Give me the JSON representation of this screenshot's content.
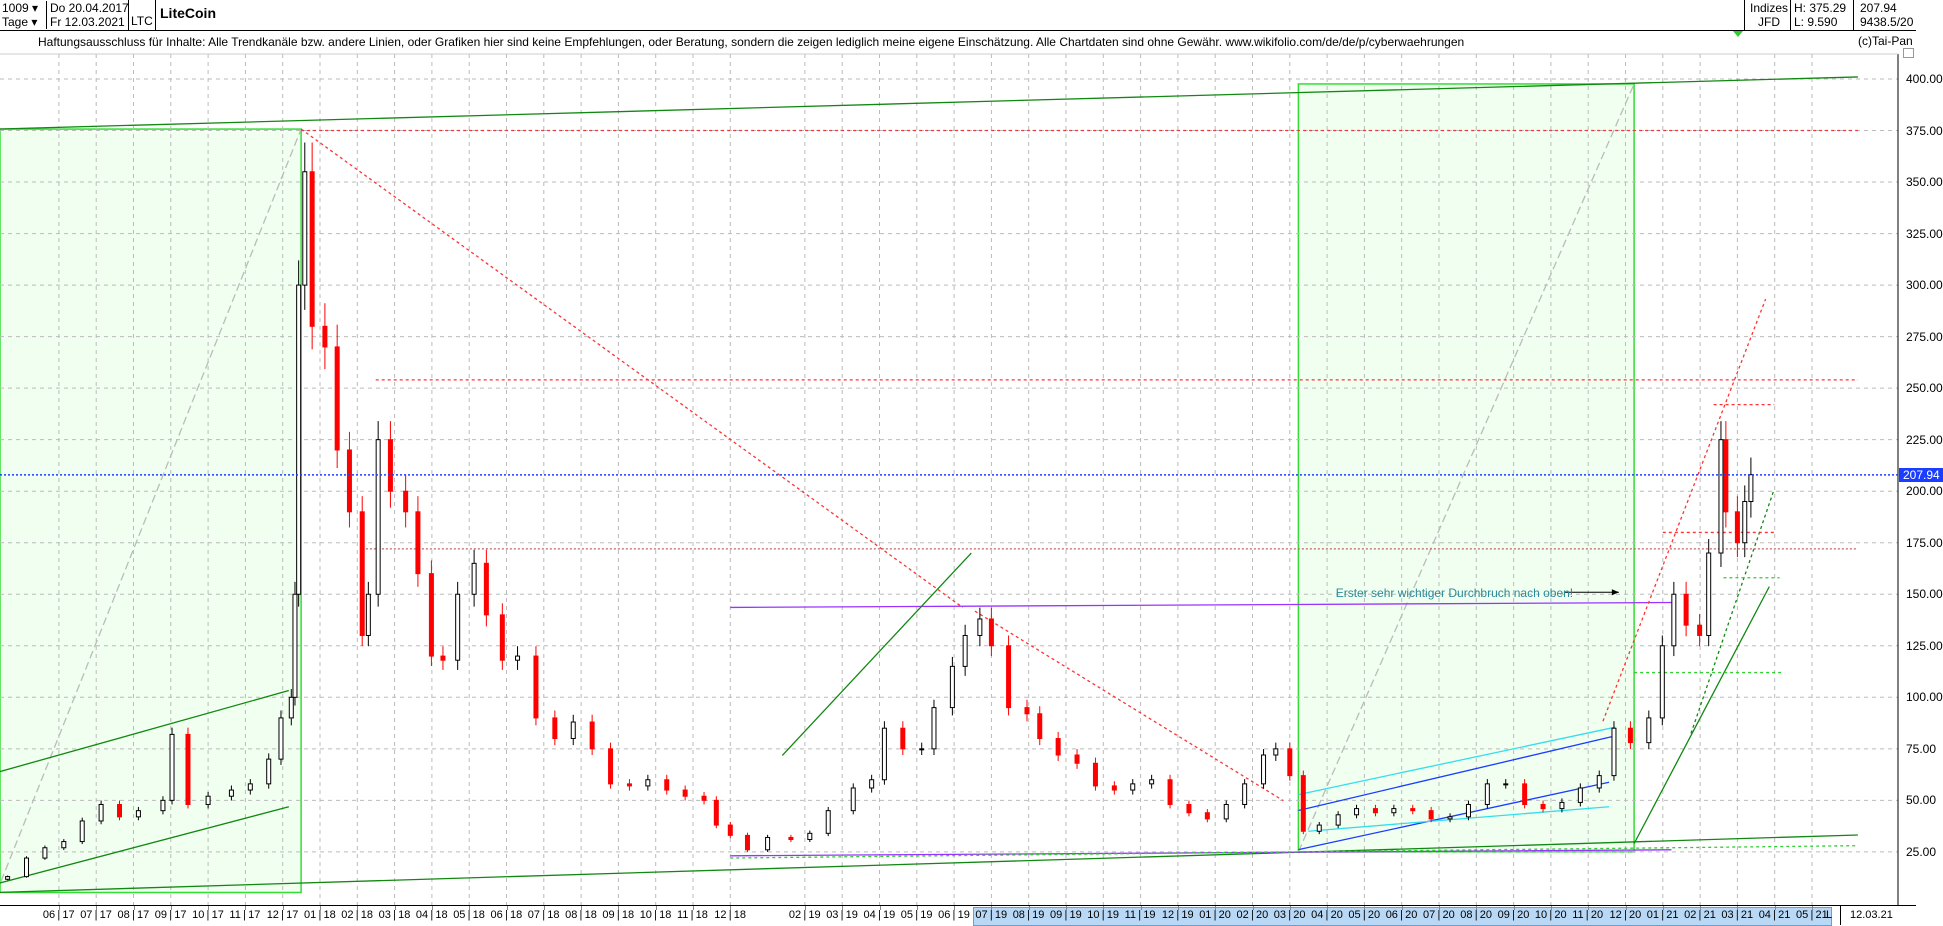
{
  "header": {
    "count": "1009",
    "period": "Tage",
    "start_date": "Do 20.04.2017",
    "end_date": "Fr 12.03.2021",
    "symbol": "LTC",
    "title": "LiteCoin",
    "market": "Indizes",
    "source": "JFD",
    "high": "H: 375.29",
    "low": "L: 9.590",
    "last": "207.94",
    "extra": "9438.5/20",
    "copyright": "(c)Tai-Pan"
  },
  "disclaimer": "Haftungsausschluss für Inhalte: Alle Trendkanäle bzw. andere Linien, oder Grafiken hier sind keine Empfehlungen, oder Beratung, sondern die zeigen lediglich meine eigene Einschätzung. Alle Chartdaten sind ohne Gewähr.  www.wikifolio.com/de/de/p/cyberwaehrungen",
  "xaxis": {
    "end_label": "12.03.21",
    "scale_label": "L"
  },
  "colors": {
    "up": "#000000",
    "down": "#ff0000",
    "last_price": "#1a3dff",
    "grid": "#bbbbbb"
  },
  "chart_data": {
    "type": "candlestick",
    "title": "LiteCoin",
    "ylim": [
      0,
      410
    ],
    "yticks": [
      "25.00",
      "50.00",
      "75.00",
      "100.00",
      "125.00",
      "150.00",
      "175.00",
      "200.00",
      "225.00",
      "250.00",
      "275.00",
      "300.00",
      "325.00",
      "350.00",
      "375.00",
      "400.00"
    ],
    "xticks": [
      "06 17",
      "07 17",
      "08 17",
      "09 17",
      "10 17",
      "11 17",
      "12 17",
      "01 18",
      "02 18",
      "03 18",
      "04 18",
      "05 18",
      "06 18",
      "07 18",
      "08 18",
      "09 18",
      "10 18",
      "11 18",
      "12 18",
      "02 19",
      "03 19",
      "04 19",
      "05 19",
      "06 19",
      "07 19",
      "08 19",
      "09 19",
      "10 19",
      "11 19",
      "12 19",
      "01 20",
      "02 20",
      "03 20",
      "04 20",
      "05 20",
      "06 20",
      "07 20",
      "08 20",
      "09 20",
      "10 20",
      "11 20",
      "12 20",
      "01 21",
      "02 21",
      "03 21",
      "04 21",
      "05 21"
    ],
    "grid": true,
    "last_price": 207.94,
    "last_price_label": "207.94",
    "closes": [
      [
        "2017-04-20",
        13
      ],
      [
        "2017-05-05",
        22
      ],
      [
        "2017-05-20",
        27
      ],
      [
        "2017-06-05",
        30
      ],
      [
        "2017-06-20",
        40
      ],
      [
        "2017-07-05",
        48
      ],
      [
        "2017-07-20",
        42
      ],
      [
        "2017-08-05",
        45
      ],
      [
        "2017-08-25",
        50
      ],
      [
        "2017-09-02",
        82
      ],
      [
        "2017-09-15",
        48
      ],
      [
        "2017-10-01",
        52
      ],
      [
        "2017-10-20",
        55
      ],
      [
        "2017-11-05",
        58
      ],
      [
        "2017-11-20",
        70
      ],
      [
        "2017-11-30",
        90
      ],
      [
        "2017-12-08",
        100
      ],
      [
        "2017-12-11",
        150
      ],
      [
        "2017-12-14",
        300
      ],
      [
        "2017-12-19",
        355
      ],
      [
        "2017-12-25",
        280
      ],
      [
        "2018-01-05",
        270
      ],
      [
        "2018-01-15",
        220
      ],
      [
        "2018-01-25",
        190
      ],
      [
        "2018-02-05",
        130
      ],
      [
        "2018-02-10",
        150
      ],
      [
        "2018-02-18",
        225
      ],
      [
        "2018-02-28",
        200
      ],
      [
        "2018-03-10",
        190
      ],
      [
        "2018-03-20",
        160
      ],
      [
        "2018-03-31",
        120
      ],
      [
        "2018-04-10",
        118
      ],
      [
        "2018-04-22",
        150
      ],
      [
        "2018-05-05",
        165
      ],
      [
        "2018-05-15",
        140
      ],
      [
        "2018-05-28",
        118
      ],
      [
        "2018-06-10",
        120
      ],
      [
        "2018-06-25",
        90
      ],
      [
        "2018-07-10",
        80
      ],
      [
        "2018-07-25",
        88
      ],
      [
        "2018-08-10",
        75
      ],
      [
        "2018-08-25",
        58
      ],
      [
        "2018-09-10",
        57
      ],
      [
        "2018-09-25",
        60
      ],
      [
        "2018-10-10",
        55
      ],
      [
        "2018-10-25",
        52
      ],
      [
        "2018-11-10",
        50
      ],
      [
        "2018-11-20",
        38
      ],
      [
        "2018-12-01",
        33
      ],
      [
        "2018-12-15",
        26
      ],
      [
        "2019-01-01",
        32
      ],
      [
        "2019-01-20",
        31
      ],
      [
        "2019-02-05",
        34
      ],
      [
        "2019-02-20",
        45
      ],
      [
        "2019-03-10",
        56
      ],
      [
        "2019-03-25",
        60
      ],
      [
        "2019-04-05",
        85
      ],
      [
        "2019-04-20",
        75
      ],
      [
        "2019-05-05",
        75
      ],
      [
        "2019-05-15",
        95
      ],
      [
        "2019-05-30",
        115
      ],
      [
        "2019-06-10",
        130
      ],
      [
        "2019-06-22",
        138
      ],
      [
        "2019-07-01",
        125
      ],
      [
        "2019-07-15",
        95
      ],
      [
        "2019-07-30",
        92
      ],
      [
        "2019-08-10",
        80
      ],
      [
        "2019-08-25",
        72
      ],
      [
        "2019-09-10",
        68
      ],
      [
        "2019-09-25",
        57
      ],
      [
        "2019-10-10",
        55
      ],
      [
        "2019-10-25",
        58
      ],
      [
        "2019-11-10",
        60
      ],
      [
        "2019-11-25",
        48
      ],
      [
        "2019-12-10",
        44
      ],
      [
        "2019-12-25",
        41
      ],
      [
        "2020-01-10",
        48
      ],
      [
        "2020-01-25",
        58
      ],
      [
        "2020-02-10",
        72
      ],
      [
        "2020-02-20",
        75
      ],
      [
        "2020-03-01",
        62
      ],
      [
        "2020-03-12",
        35
      ],
      [
        "2020-03-25",
        38
      ],
      [
        "2020-04-10",
        43
      ],
      [
        "2020-04-25",
        46
      ],
      [
        "2020-05-10",
        44
      ],
      [
        "2020-05-25",
        46
      ],
      [
        "2020-06-10",
        45
      ],
      [
        "2020-06-25",
        41
      ],
      [
        "2020-07-10",
        42
      ],
      [
        "2020-07-25",
        48
      ],
      [
        "2020-08-10",
        58
      ],
      [
        "2020-08-25",
        58
      ],
      [
        "2020-09-10",
        48
      ],
      [
        "2020-09-25",
        46
      ],
      [
        "2020-10-10",
        49
      ],
      [
        "2020-10-25",
        56
      ],
      [
        "2020-11-10",
        62
      ],
      [
        "2020-11-22",
        85
      ],
      [
        "2020-12-05",
        78
      ],
      [
        "2020-12-20",
        90
      ],
      [
        "2020-12-31",
        125
      ],
      [
        "2021-01-10",
        150
      ],
      [
        "2021-01-20",
        135
      ],
      [
        "2021-01-31",
        130
      ],
      [
        "2021-02-08",
        170
      ],
      [
        "2021-02-18",
        225
      ],
      [
        "2021-02-22",
        190
      ],
      [
        "2021-03-01",
        175
      ],
      [
        "2021-03-07",
        195
      ],
      [
        "2021-03-12",
        208
      ]
    ],
    "boxes": [
      {
        "from": [
          "2017-04-11",
          375.7
        ],
        "to": [
          "2017-12-16",
          5.3
        ],
        "color": "#33dd33"
      },
      {
        "from": [
          "2020-03-08",
          397.6
        ],
        "to": [
          "2020-12-08",
          25
        ],
        "color": "#33dd33"
      }
    ],
    "lines": [
      {
        "from": [
          "2017-04-11",
          375.7
        ],
        "to": [
          "2021-06-08",
          401
        ],
        "color": "#118811",
        "dash": ""
      },
      {
        "from": [
          "2017-04-11",
          5.3
        ],
        "to": [
          "2021-06-08",
          33.2
        ],
        "color": "#118811",
        "dash": ""
      },
      {
        "from": [
          "2017-04-11",
          5.3
        ],
        "to": [
          "2017-12-16",
          375.7
        ],
        "color": "#bbbbbb",
        "dash": "8,4"
      },
      {
        "from": [
          "2020-03-08",
          25
        ],
        "to": [
          "2020-12-08",
          397.6
        ],
        "color": "#bbbbbb",
        "dash": "8,4"
      },
      {
        "from": [
          "2017-04-11",
          63.5
        ],
        "to": [
          "2017-12-06",
          103.3
        ],
        "color": "#118811",
        "dash": ""
      },
      {
        "from": [
          "2017-04-11",
          9.5
        ],
        "to": [
          "2017-12-06",
          46.9
        ],
        "color": "#118811",
        "dash": ""
      },
      {
        "from": [
          "2017-12-16",
          375
        ],
        "to": [
          "2021-06-08",
          375
        ],
        "color": "#ff3333",
        "dash": "3,3"
      },
      {
        "from": [
          "2018-02-16",
          254
        ],
        "to": [
          "2021-06-08",
          254
        ],
        "color": "#ff3333",
        "dash": "3,3"
      },
      {
        "from": [
          "2018-02-08",
          172
        ],
        "to": [
          "2021-06-08",
          172
        ],
        "color": "#bb6666",
        "dash": "2,2"
      },
      {
        "from": [
          "2017-12-16",
          375.7
        ],
        "to": [
          "2019-06-08",
          143.6
        ],
        "color": "#ff3333",
        "dash": "3,3"
      },
      {
        "from": [
          "2018-12-01",
          143.6
        ],
        "to": [
          "2021-01-08",
          146
        ],
        "color": "#9933ff",
        "dash": ""
      },
      {
        "from": [
          "2018-12-01",
          23.1
        ],
        "to": [
          "2021-01-08",
          26
        ],
        "color": "#9933ff",
        "dash": ""
      },
      {
        "from": [
          "2019-01-13",
          71.8
        ],
        "to": [
          "2019-06-15",
          170
        ],
        "color": "#118811",
        "dash": ""
      },
      {
        "from": [
          "2019-06-18",
          141.8
        ],
        "to": [
          "2020-02-26",
          49.9
        ],
        "color": "#ff3333",
        "dash": "3,3"
      },
      {
        "from": [
          "2020-03-08",
          45.1
        ],
        "to": [
          "2020-11-23",
          81.3
        ],
        "color": "#1a3dff",
        "dash": ""
      },
      {
        "from": [
          "2020-03-08",
          26.1
        ],
        "to": [
          "2020-11-18",
          58.8
        ],
        "color": "#1a3dff",
        "dash": ""
      },
      {
        "from": [
          "2020-03-08",
          52.8
        ],
        "to": [
          "2020-11-23",
          85.5
        ],
        "color": "#33ddee",
        "dash": ""
      },
      {
        "from": [
          "2020-03-16",
          35
        ],
        "to": [
          "2020-11-18",
          46.9
        ],
        "color": "#33ddee",
        "dash": ""
      },
      {
        "from": [
          "2021-01-24",
          82.5
        ],
        "to": [
          "2021-03-31",
          201
        ],
        "color": "#118811",
        "dash": "3,3"
      },
      {
        "from": [
          "2020-12-08",
          29
        ],
        "to": [
          "2021-03-27",
          153.7
        ],
        "color": "#118811",
        "dash": ""
      },
      {
        "from": [
          "2020-11-13",
          88.4
        ],
        "to": [
          "2021-03-24",
          293.2
        ],
        "color": "#ff3333",
        "dash": "3,3"
      },
      {
        "from": [
          "2021-02-12",
          242
        ],
        "to": [
          "2021-03-31",
          242
        ],
        "color": "#ff3333",
        "dash": "3,3"
      },
      {
        "from": [
          "2021-01-01",
          180
        ],
        "to": [
          "2021-03-31",
          180
        ],
        "color": "#ff3333",
        "dash": "3,3"
      },
      {
        "from": [
          "2021-02-20",
          158
        ],
        "to": [
          "2021-04-05",
          158
        ],
        "color": "#33cc33",
        "dash": "3,3"
      },
      {
        "from": [
          "2020-12-08",
          112
        ],
        "to": [
          "2021-04-08",
          112
        ],
        "color": "#33cc33",
        "dash": "3,3"
      },
      {
        "from": [
          "2018-12-01",
          22
        ],
        "to": [
          "2021-06-08",
          28
        ],
        "color": "#33cc33",
        "dash": "3,3"
      }
    ],
    "annotations": [
      {
        "text": "Erster sehr wichtiger Durchbruch nach oben!",
        "at": [
          "2020-04-08",
          150
        ],
        "arrow_to": [
          "2020-11-26",
          150
        ]
      }
    ]
  }
}
